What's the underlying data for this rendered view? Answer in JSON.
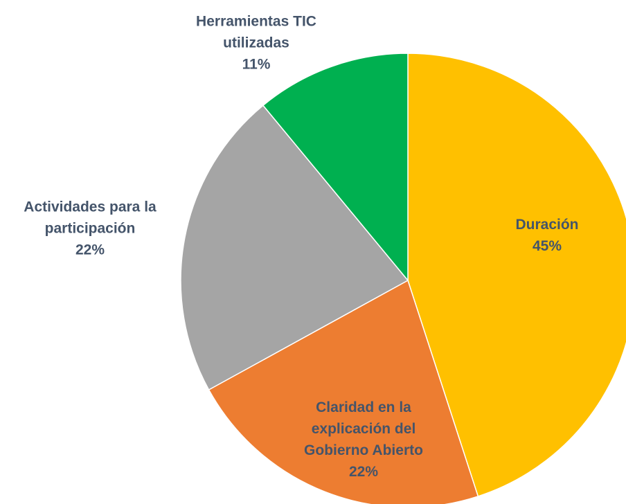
{
  "chart_data": {
    "type": "pie",
    "categories": [
      "Duración",
      "Claridad en la explicación del Gobierno Abierto",
      "Actividades para la participación",
      "Herramientas TIC utilizadas"
    ],
    "values": [
      45,
      22,
      22,
      11
    ],
    "value_labels": [
      "45%",
      "22%",
      "22%",
      "11%"
    ],
    "colors": [
      "#FFC000",
      "#ED7D31",
      "#A5A5A5",
      "#00B050"
    ]
  }
}
